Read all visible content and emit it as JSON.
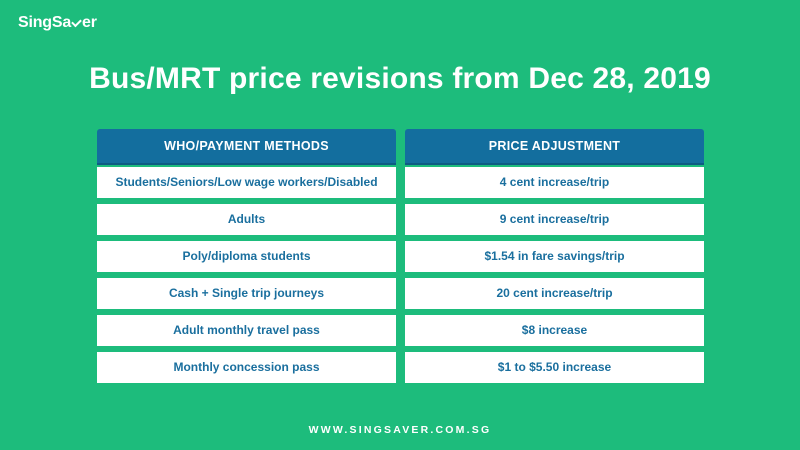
{
  "brand": {
    "logo_text_before": "SingSa",
    "logo_text_after": "er",
    "logo_icon": "checkmark-v-icon"
  },
  "title": "Bus/MRT price revisions from Dec 28, 2019",
  "table": {
    "headers": [
      "WHO/PAYMENT METHODS",
      "PRICE ADJUSTMENT"
    ],
    "rows": [
      {
        "who": "Students/Seniors/Low wage workers/Disabled",
        "adjustment": "4 cent increase/trip"
      },
      {
        "who": "Adults",
        "adjustment": "9 cent increase/trip"
      },
      {
        "who": "Poly/diploma students",
        "adjustment": "$1.54 in fare savings/trip"
      },
      {
        "who": "Cash + Single trip journeys",
        "adjustment": "20 cent increase/trip"
      },
      {
        "who": "Adult monthly travel pass",
        "adjustment": "$8 increase"
      },
      {
        "who": "Monthly concession pass",
        "adjustment": "$1 to $5.50 increase"
      }
    ]
  },
  "footer": "WWW.SINGSAVER.COM.SG",
  "colors": {
    "background": "#1dbc7c",
    "header_fill": "#136e9e",
    "cell_text": "#1a6f9e",
    "cell_fill": "#ffffff"
  }
}
